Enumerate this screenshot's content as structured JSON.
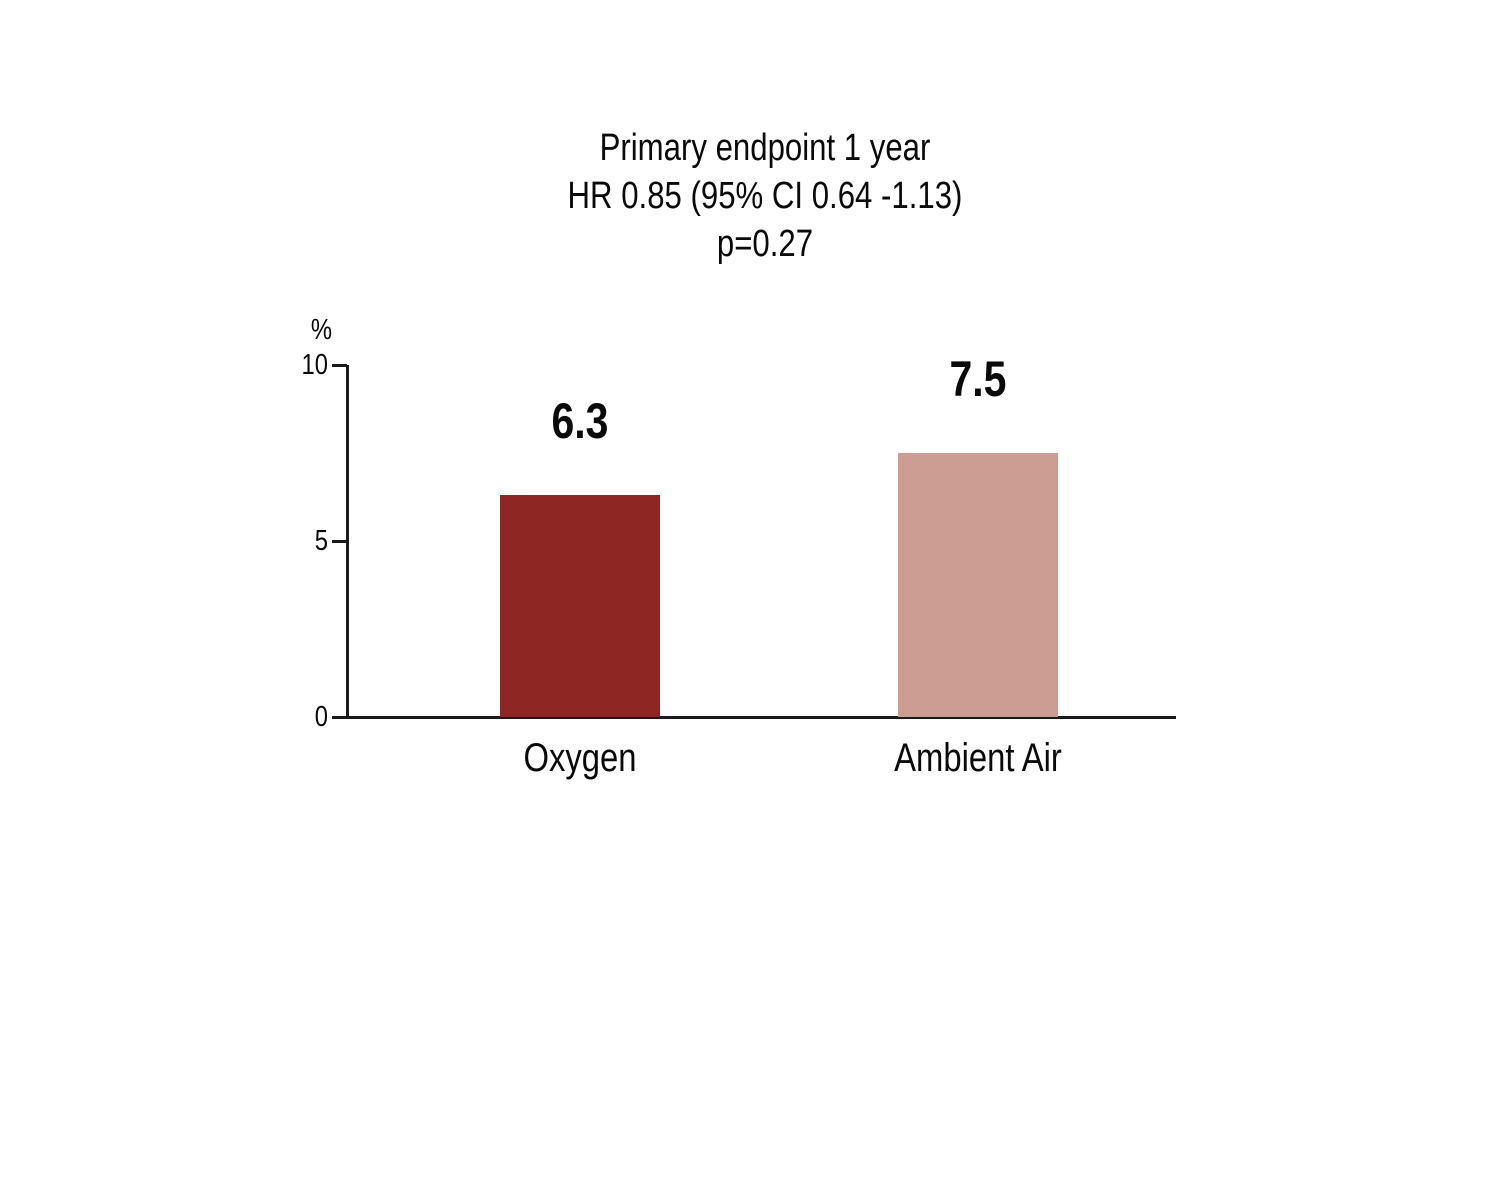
{
  "chart_data": {
    "type": "bar",
    "title": "Primary endpoint 1 year HR 0.85 (95% CI 0.64 -1.13) p=0.27",
    "title_lines": [
      "Primary endpoint 1 year",
      "HR 0.85 (95% CI 0.64 -1.13)",
      "p=0.27"
    ],
    "categories": [
      "Oxygen",
      "Ambient Air"
    ],
    "values": [
      6.3,
      7.5
    ],
    "value_labels": [
      "6.3",
      "7.5"
    ],
    "bar_colors": [
      "#8e2623",
      "#cc9e93"
    ],
    "ylabel": "%",
    "xlabel": "",
    "ylim": [
      0,
      10
    ],
    "yticks": [
      0,
      5,
      10
    ],
    "grid": false,
    "legend_position": "none",
    "axis_color": "#1a1a1a",
    "background_color": "#ffffff"
  }
}
